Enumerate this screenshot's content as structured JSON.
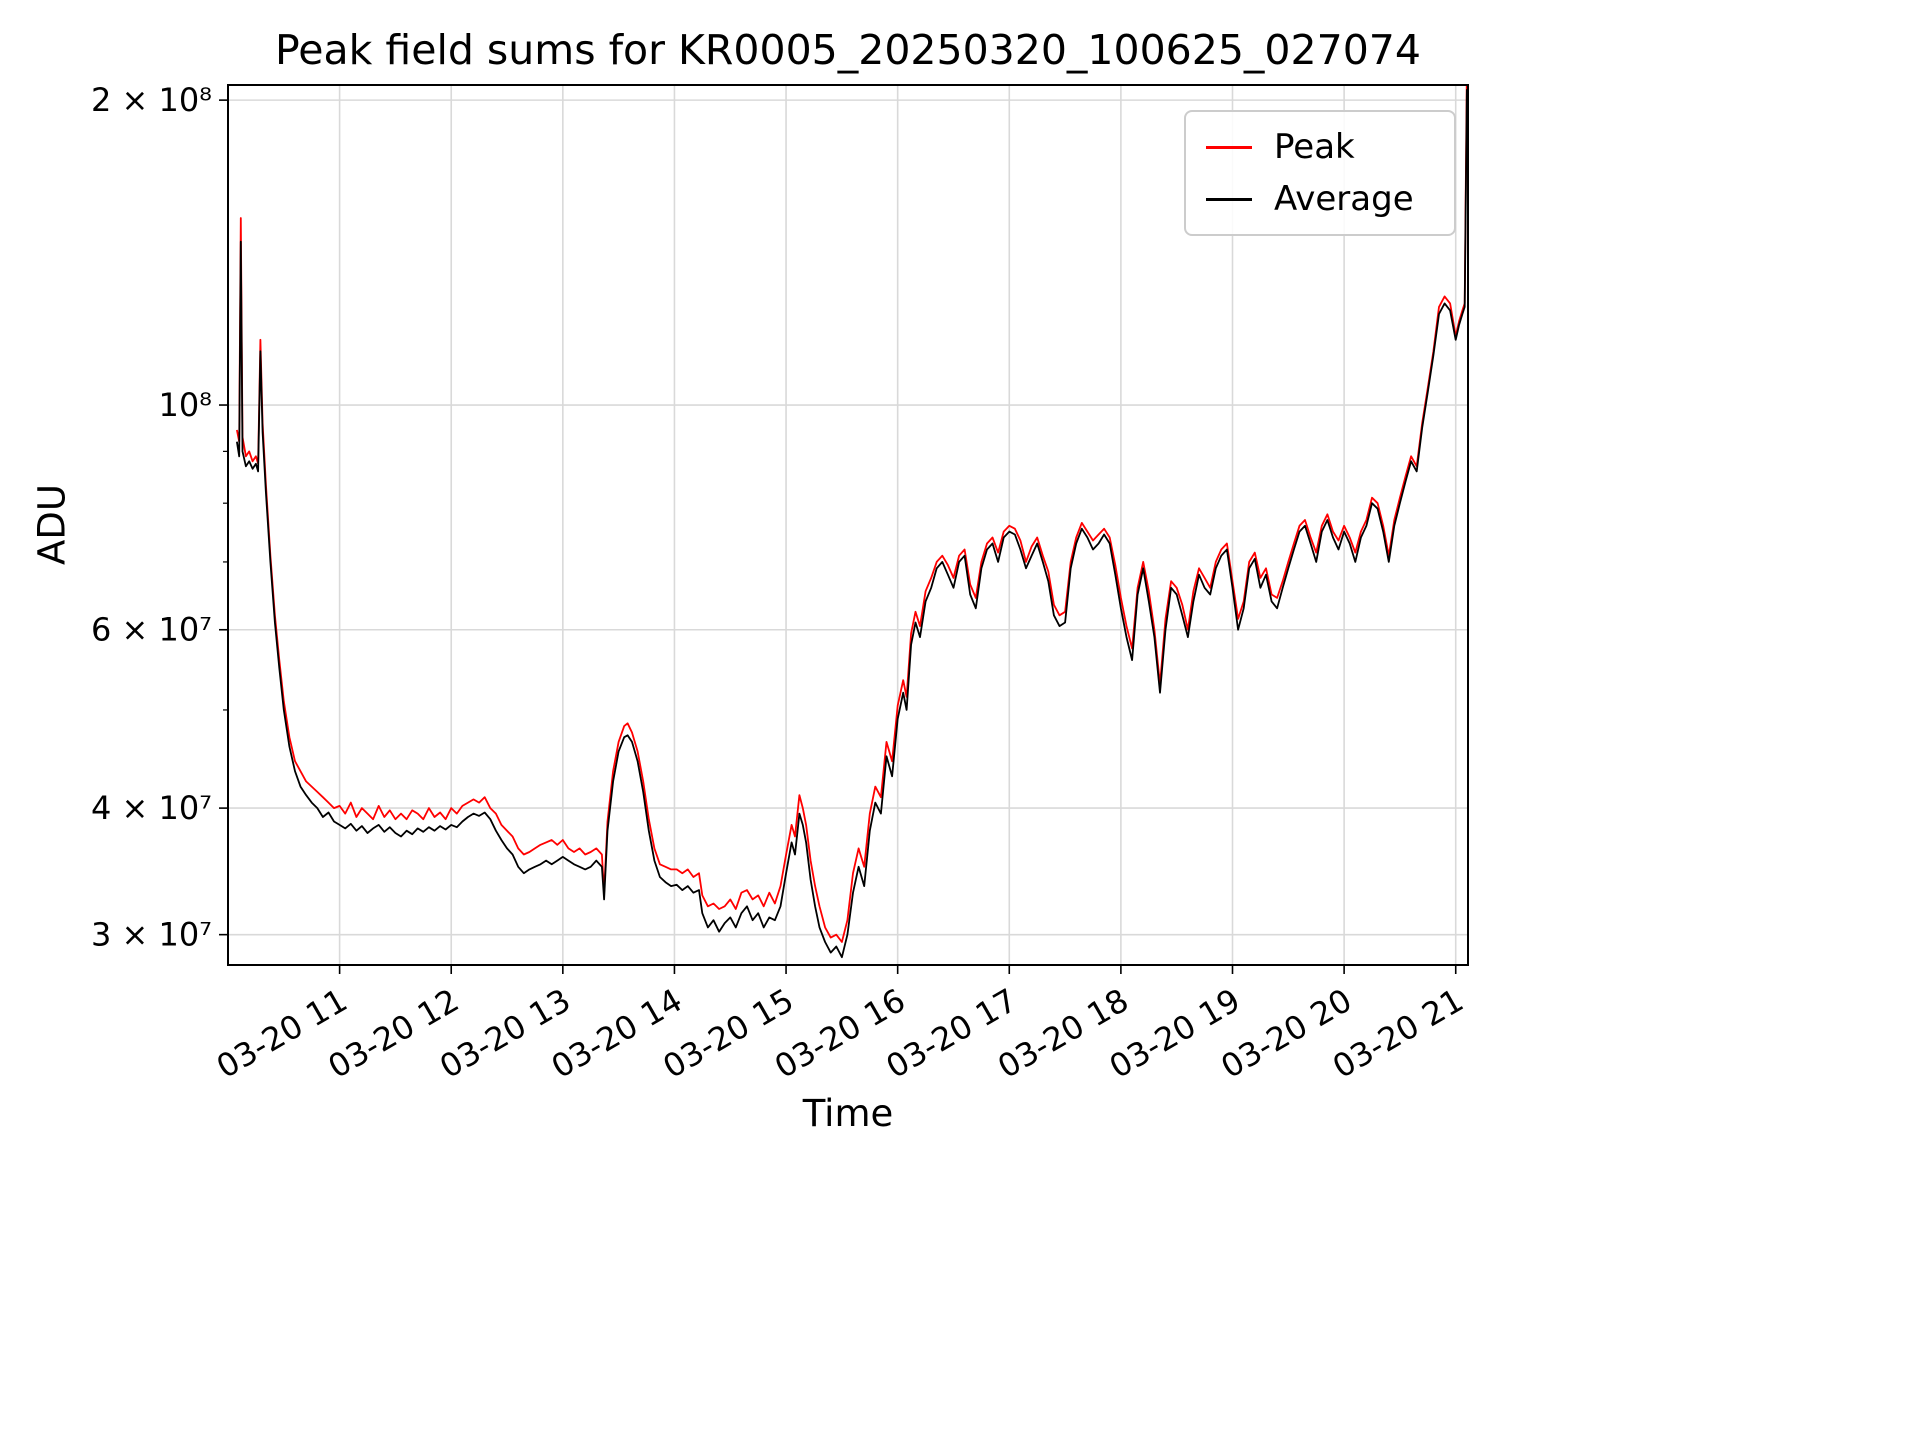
{
  "chart_data": {
    "type": "line",
    "title": "Peak field sums for KR0005_20250320_100625_027074",
    "xlabel": "Time",
    "ylabel": "ADU",
    "y_scale": "log",
    "grid": true,
    "ylim": [
      28000000,
      207000000
    ],
    "xlim_hours": [
      10.0,
      21.11
    ],
    "value_scale": 10000000,
    "x_ticks": [
      {
        "hour": 11,
        "label": "03-20 11"
      },
      {
        "hour": 12,
        "label": "03-20 12"
      },
      {
        "hour": 13,
        "label": "03-20 13"
      },
      {
        "hour": 14,
        "label": "03-20 14"
      },
      {
        "hour": 15,
        "label": "03-20 15"
      },
      {
        "hour": 16,
        "label": "03-20 16"
      },
      {
        "hour": 17,
        "label": "03-20 17"
      },
      {
        "hour": 18,
        "label": "03-20 18"
      },
      {
        "hour": 19,
        "label": "03-20 19"
      },
      {
        "hour": 20,
        "label": "03-20 20"
      },
      {
        "hour": 21,
        "label": "03-20 21"
      }
    ],
    "y_ticks": [
      {
        "value": 200000000,
        "label": "2 × 10⁸"
      },
      {
        "value": 100000000,
        "label": "10⁸"
      },
      {
        "value": 60000000,
        "label": "6 × 10⁷"
      },
      {
        "value": 40000000,
        "label": "4 × 10⁷"
      },
      {
        "value": 30000000,
        "label": "3 × 10⁷"
      }
    ],
    "y_minor_ticks": [
      50000000,
      70000000,
      80000000,
      90000000
    ],
    "legend": {
      "position": "upper-right"
    },
    "series": [
      {
        "name": "Peak",
        "color": "#ff0000",
        "points_index": 2
      },
      {
        "name": "Average",
        "color": "#000000",
        "points_index": 1
      }
    ],
    "points_format": "[hour, average, peak] in units of value_scale",
    "points": [
      [
        10.08,
        9.2,
        9.45
      ],
      [
        10.1,
        8.9,
        9.2
      ],
      [
        10.115,
        14.5,
        15.3
      ],
      [
        10.13,
        9.0,
        9.3
      ],
      [
        10.16,
        8.7,
        8.9
      ],
      [
        10.19,
        8.8,
        9.0
      ],
      [
        10.22,
        8.65,
        8.8
      ],
      [
        10.25,
        8.75,
        8.9
      ],
      [
        10.27,
        8.6,
        8.75
      ],
      [
        10.29,
        11.3,
        11.6
      ],
      [
        10.31,
        9.4,
        9.6
      ],
      [
        10.34,
        8.2,
        8.35
      ],
      [
        10.38,
        7.0,
        7.1
      ],
      [
        10.42,
        6.1,
        6.2
      ],
      [
        10.46,
        5.5,
        5.6
      ],
      [
        10.5,
        5.0,
        5.1
      ],
      [
        10.55,
        4.6,
        4.7
      ],
      [
        10.6,
        4.35,
        4.45
      ],
      [
        10.65,
        4.2,
        4.35
      ],
      [
        10.7,
        4.12,
        4.25
      ],
      [
        10.75,
        4.05,
        4.2
      ],
      [
        10.8,
        4.0,
        4.15
      ],
      [
        10.85,
        3.92,
        4.1
      ],
      [
        10.9,
        3.96,
        4.05
      ],
      [
        10.95,
        3.88,
        4.0
      ],
      [
        11.0,
        3.85,
        4.02
      ],
      [
        11.05,
        3.82,
        3.95
      ],
      [
        11.1,
        3.86,
        4.05
      ],
      [
        11.15,
        3.8,
        3.92
      ],
      [
        11.2,
        3.84,
        4.0
      ],
      [
        11.25,
        3.78,
        3.95
      ],
      [
        11.3,
        3.82,
        3.9
      ],
      [
        11.35,
        3.85,
        4.02
      ],
      [
        11.4,
        3.79,
        3.92
      ],
      [
        11.45,
        3.83,
        3.98
      ],
      [
        11.5,
        3.78,
        3.9
      ],
      [
        11.55,
        3.75,
        3.95
      ],
      [
        11.6,
        3.8,
        3.9
      ],
      [
        11.65,
        3.77,
        3.98
      ],
      [
        11.7,
        3.82,
        3.95
      ],
      [
        11.75,
        3.79,
        3.9
      ],
      [
        11.8,
        3.83,
        4.0
      ],
      [
        11.85,
        3.8,
        3.92
      ],
      [
        11.9,
        3.84,
        3.96
      ],
      [
        11.95,
        3.81,
        3.9
      ],
      [
        12.0,
        3.85,
        4.0
      ],
      [
        12.05,
        3.83,
        3.95
      ],
      [
        12.1,
        3.88,
        4.02
      ],
      [
        12.15,
        3.92,
        4.05
      ],
      [
        12.2,
        3.95,
        4.08
      ],
      [
        12.25,
        3.93,
        4.05
      ],
      [
        12.3,
        3.96,
        4.1
      ],
      [
        12.35,
        3.9,
        4.0
      ],
      [
        12.4,
        3.8,
        3.95
      ],
      [
        12.45,
        3.72,
        3.85
      ],
      [
        12.5,
        3.65,
        3.8
      ],
      [
        12.55,
        3.6,
        3.75
      ],
      [
        12.6,
        3.5,
        3.65
      ],
      [
        12.65,
        3.45,
        3.6
      ],
      [
        12.7,
        3.48,
        3.62
      ],
      [
        12.75,
        3.5,
        3.65
      ],
      [
        12.8,
        3.52,
        3.68
      ],
      [
        12.85,
        3.55,
        3.7
      ],
      [
        12.9,
        3.52,
        3.72
      ],
      [
        12.95,
        3.55,
        3.68
      ],
      [
        13.0,
        3.58,
        3.72
      ],
      [
        13.05,
        3.55,
        3.65
      ],
      [
        13.1,
        3.52,
        3.62
      ],
      [
        13.15,
        3.5,
        3.65
      ],
      [
        13.2,
        3.48,
        3.6
      ],
      [
        13.25,
        3.5,
        3.62
      ],
      [
        13.3,
        3.55,
        3.65
      ],
      [
        13.35,
        3.5,
        3.6
      ],
      [
        13.37,
        3.25,
        3.3
      ],
      [
        13.4,
        3.8,
        3.88
      ],
      [
        13.45,
        4.25,
        4.35
      ],
      [
        13.5,
        4.55,
        4.65
      ],
      [
        13.55,
        4.7,
        4.82
      ],
      [
        13.58,
        4.72,
        4.85
      ],
      [
        13.62,
        4.65,
        4.75
      ],
      [
        13.67,
        4.45,
        4.55
      ],
      [
        13.72,
        4.15,
        4.25
      ],
      [
        13.77,
        3.8,
        3.9
      ],
      [
        13.82,
        3.55,
        3.65
      ],
      [
        13.87,
        3.42,
        3.52
      ],
      [
        13.92,
        3.38,
        3.5
      ],
      [
        13.97,
        3.35,
        3.48
      ],
      [
        14.02,
        3.36,
        3.48
      ],
      [
        14.07,
        3.32,
        3.45
      ],
      [
        14.12,
        3.35,
        3.48
      ],
      [
        14.17,
        3.3,
        3.42
      ],
      [
        14.22,
        3.32,
        3.45
      ],
      [
        14.25,
        3.15,
        3.28
      ],
      [
        14.3,
        3.05,
        3.2
      ],
      [
        14.35,
        3.1,
        3.22
      ],
      [
        14.4,
        3.02,
        3.18
      ],
      [
        14.45,
        3.08,
        3.2
      ],
      [
        14.5,
        3.12,
        3.25
      ],
      [
        14.55,
        3.05,
        3.18
      ],
      [
        14.6,
        3.15,
        3.3
      ],
      [
        14.65,
        3.2,
        3.32
      ],
      [
        14.7,
        3.1,
        3.25
      ],
      [
        14.75,
        3.15,
        3.28
      ],
      [
        14.8,
        3.05,
        3.2
      ],
      [
        14.85,
        3.12,
        3.3
      ],
      [
        14.9,
        3.1,
        3.22
      ],
      [
        14.95,
        3.2,
        3.35
      ],
      [
        15.0,
        3.45,
        3.6
      ],
      [
        15.05,
        3.7,
        3.85
      ],
      [
        15.08,
        3.6,
        3.75
      ],
      [
        15.12,
        3.95,
        4.12
      ],
      [
        15.15,
        3.85,
        4.0
      ],
      [
        15.18,
        3.7,
        3.85
      ],
      [
        15.22,
        3.4,
        3.55
      ],
      [
        15.26,
        3.2,
        3.35
      ],
      [
        15.3,
        3.05,
        3.2
      ],
      [
        15.35,
        2.95,
        3.05
      ],
      [
        15.4,
        2.88,
        2.98
      ],
      [
        15.45,
        2.92,
        3.0
      ],
      [
        15.5,
        2.85,
        2.95
      ],
      [
        15.55,
        3.0,
        3.1
      ],
      [
        15.6,
        3.3,
        3.45
      ],
      [
        15.65,
        3.5,
        3.65
      ],
      [
        15.7,
        3.35,
        3.5
      ],
      [
        15.75,
        3.8,
        3.95
      ],
      [
        15.8,
        4.05,
        4.2
      ],
      [
        15.85,
        3.95,
        4.1
      ],
      [
        15.9,
        4.5,
        4.65
      ],
      [
        15.95,
        4.3,
        4.45
      ],
      [
        16.0,
        4.9,
        5.05
      ],
      [
        16.05,
        5.2,
        5.35
      ],
      [
        16.08,
        5.0,
        5.15
      ],
      [
        16.12,
        5.8,
        5.95
      ],
      [
        16.16,
        6.1,
        6.25
      ],
      [
        16.2,
        5.9,
        6.05
      ],
      [
        16.25,
        6.4,
        6.55
      ],
      [
        16.3,
        6.6,
        6.75
      ],
      [
        16.35,
        6.9,
        7.0
      ],
      [
        16.4,
        7.0,
        7.1
      ],
      [
        16.45,
        6.8,
        6.95
      ],
      [
        16.5,
        6.6,
        6.75
      ],
      [
        16.55,
        7.0,
        7.1
      ],
      [
        16.6,
        7.1,
        7.2
      ],
      [
        16.65,
        6.5,
        6.65
      ],
      [
        16.7,
        6.3,
        6.45
      ],
      [
        16.75,
        6.9,
        7.0
      ],
      [
        16.8,
        7.2,
        7.3
      ],
      [
        16.85,
        7.3,
        7.4
      ],
      [
        16.9,
        7.0,
        7.15
      ],
      [
        16.95,
        7.4,
        7.5
      ],
      [
        17.0,
        7.5,
        7.6
      ],
      [
        17.05,
        7.45,
        7.55
      ],
      [
        17.1,
        7.2,
        7.35
      ],
      [
        17.15,
        6.9,
        7.0
      ],
      [
        17.2,
        7.1,
        7.25
      ],
      [
        17.25,
        7.3,
        7.4
      ],
      [
        17.3,
        7.0,
        7.1
      ],
      [
        17.35,
        6.7,
        6.85
      ],
      [
        17.4,
        6.2,
        6.35
      ],
      [
        17.45,
        6.05,
        6.2
      ],
      [
        17.5,
        6.1,
        6.25
      ],
      [
        17.55,
        6.9,
        7.0
      ],
      [
        17.6,
        7.3,
        7.4
      ],
      [
        17.65,
        7.55,
        7.65
      ],
      [
        17.7,
        7.4,
        7.5
      ],
      [
        17.75,
        7.2,
        7.35
      ],
      [
        17.8,
        7.3,
        7.45
      ],
      [
        17.85,
        7.45,
        7.55
      ],
      [
        17.9,
        7.3,
        7.4
      ],
      [
        17.95,
        6.8,
        6.95
      ],
      [
        18.0,
        6.3,
        6.45
      ],
      [
        18.05,
        5.9,
        6.05
      ],
      [
        18.1,
        5.6,
        5.75
      ],
      [
        18.15,
        6.5,
        6.6
      ],
      [
        18.2,
        6.9,
        7.0
      ],
      [
        18.25,
        6.4,
        6.55
      ],
      [
        18.3,
        5.9,
        6.0
      ],
      [
        18.35,
        5.2,
        5.3
      ],
      [
        18.4,
        6.0,
        6.15
      ],
      [
        18.45,
        6.6,
        6.7
      ],
      [
        18.5,
        6.5,
        6.6
      ],
      [
        18.55,
        6.2,
        6.35
      ],
      [
        18.6,
        5.9,
        6.0
      ],
      [
        18.65,
        6.4,
        6.55
      ],
      [
        18.7,
        6.8,
        6.9
      ],
      [
        18.75,
        6.6,
        6.75
      ],
      [
        18.8,
        6.5,
        6.6
      ],
      [
        18.85,
        6.9,
        7.0
      ],
      [
        18.9,
        7.1,
        7.2
      ],
      [
        18.95,
        7.2,
        7.3
      ],
      [
        19.0,
        6.6,
        6.7
      ],
      [
        19.05,
        6.0,
        6.15
      ],
      [
        19.1,
        6.3,
        6.4
      ],
      [
        19.15,
        6.9,
        7.0
      ],
      [
        19.2,
        7.05,
        7.15
      ],
      [
        19.25,
        6.6,
        6.75
      ],
      [
        19.3,
        6.8,
        6.9
      ],
      [
        19.35,
        6.4,
        6.5
      ],
      [
        19.4,
        6.3,
        6.45
      ],
      [
        19.45,
        6.6,
        6.7
      ],
      [
        19.5,
        6.9,
        7.0
      ],
      [
        19.55,
        7.2,
        7.3
      ],
      [
        19.6,
        7.5,
        7.6
      ],
      [
        19.65,
        7.6,
        7.7
      ],
      [
        19.7,
        7.3,
        7.4
      ],
      [
        19.75,
        7.0,
        7.15
      ],
      [
        19.8,
        7.5,
        7.6
      ],
      [
        19.85,
        7.7,
        7.8
      ],
      [
        19.9,
        7.4,
        7.5
      ],
      [
        19.95,
        7.2,
        7.35
      ],
      [
        20.0,
        7.5,
        7.6
      ],
      [
        20.05,
        7.3,
        7.4
      ],
      [
        20.1,
        7.0,
        7.15
      ],
      [
        20.15,
        7.4,
        7.5
      ],
      [
        20.2,
        7.6,
        7.7
      ],
      [
        20.25,
        8.0,
        8.1
      ],
      [
        20.3,
        7.9,
        8.0
      ],
      [
        20.35,
        7.5,
        7.6
      ],
      [
        20.4,
        7.0,
        7.1
      ],
      [
        20.45,
        7.6,
        7.7
      ],
      [
        20.5,
        8.0,
        8.1
      ],
      [
        20.55,
        8.4,
        8.5
      ],
      [
        20.6,
        8.8,
        8.9
      ],
      [
        20.65,
        8.6,
        8.7
      ],
      [
        20.7,
        9.5,
        9.6
      ],
      [
        20.75,
        10.3,
        10.4
      ],
      [
        20.8,
        11.2,
        11.3
      ],
      [
        20.85,
        12.3,
        12.5
      ],
      [
        20.9,
        12.6,
        12.8
      ],
      [
        20.95,
        12.4,
        12.6
      ],
      [
        21.0,
        11.6,
        11.7
      ],
      [
        21.03,
        12.0,
        12.1
      ],
      [
        21.06,
        12.3,
        12.4
      ],
      [
        21.08,
        12.5,
        12.6
      ],
      [
        21.1,
        20.5,
        21.5
      ]
    ]
  }
}
